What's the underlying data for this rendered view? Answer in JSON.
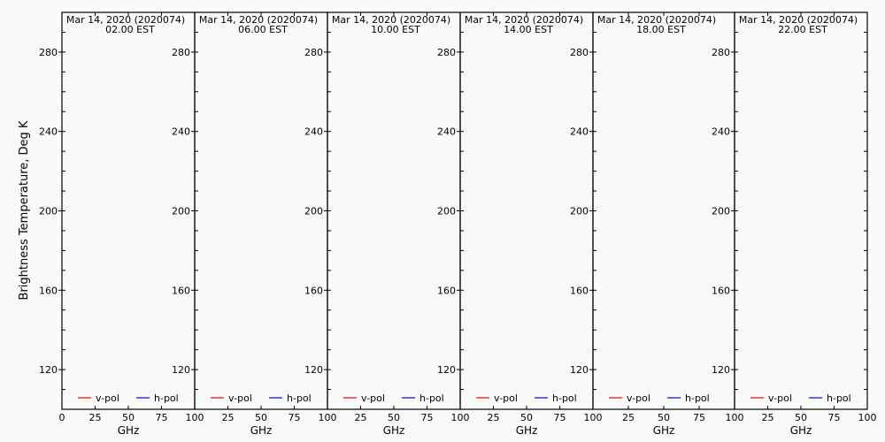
{
  "chart_data": [
    {
      "type": "line",
      "title": "Mar 14, 2020 (2020074)",
      "subtitle": "02.00 EST",
      "xlabel": "GHz",
      "ylabel": "Brightness Temperature, Deg K",
      "xlim": [
        0,
        100
      ],
      "ylim": [
        100,
        300
      ],
      "xticks": [
        "0",
        "25",
        "50",
        "75",
        "100"
      ],
      "yticks": [
        "120",
        "160",
        "200",
        "240",
        "280"
      ],
      "legend": [
        {
          "name": "v-pol",
          "color": "#ff0000"
        },
        {
          "name": "h-pol",
          "color": "#0000ff"
        }
      ],
      "legend_placement": "bottom",
      "series": [
        {
          "name": "v-pol",
          "values": []
        },
        {
          "name": "h-pol",
          "values": []
        }
      ],
      "grid": false
    },
    {
      "type": "line",
      "title": "Mar 14, 2020 (2020074)",
      "subtitle": "06.00 EST",
      "xlabel": "GHz",
      "xlim": [
        0,
        100
      ],
      "ylim": [
        100,
        300
      ],
      "xticks": [
        "25",
        "50",
        "75",
        "100"
      ],
      "yticks": [
        "120",
        "160",
        "200",
        "240",
        "280"
      ],
      "legend": [
        {
          "name": "v-pol",
          "color": "#ff0000"
        },
        {
          "name": "h-pol",
          "color": "#0000ff"
        }
      ],
      "legend_placement": "bottom",
      "series": [
        {
          "name": "v-pol",
          "values": []
        },
        {
          "name": "h-pol",
          "values": []
        }
      ],
      "grid": false
    },
    {
      "type": "line",
      "title": "Mar 14, 2020 (2020074)",
      "subtitle": "10.00 EST",
      "xlabel": "GHz",
      "xlim": [
        0,
        100
      ],
      "ylim": [
        100,
        300
      ],
      "xticks": [
        "25",
        "50",
        "75",
        "100"
      ],
      "yticks": [
        "120",
        "160",
        "200",
        "240",
        "280"
      ],
      "legend": [
        {
          "name": "v-pol",
          "color": "#ff0000"
        },
        {
          "name": "h-pol",
          "color": "#0000ff"
        }
      ],
      "legend_placement": "bottom",
      "series": [
        {
          "name": "v-pol",
          "values": []
        },
        {
          "name": "h-pol",
          "values": []
        }
      ],
      "grid": false
    },
    {
      "type": "line",
      "title": "Mar 14, 2020 (2020074)",
      "subtitle": "14.00 EST",
      "xlabel": "GHz",
      "xlim": [
        0,
        100
      ],
      "ylim": [
        100,
        300
      ],
      "xticks": [
        "25",
        "50",
        "75",
        "100"
      ],
      "yticks": [
        "120",
        "160",
        "200",
        "240",
        "280"
      ],
      "legend": [
        {
          "name": "v-pol",
          "color": "#ff0000"
        },
        {
          "name": "h-pol",
          "color": "#0000ff"
        }
      ],
      "legend_placement": "bottom",
      "series": [
        {
          "name": "v-pol",
          "values": []
        },
        {
          "name": "h-pol",
          "values": []
        }
      ],
      "grid": false
    },
    {
      "type": "line",
      "title": "Mar 14, 2020 (2020074)",
      "subtitle": "18.00 EST",
      "xlabel": "GHz",
      "xlim": [
        0,
        100
      ],
      "ylim": [
        100,
        300
      ],
      "xticks": [
        "25",
        "50",
        "75",
        "100"
      ],
      "yticks": [
        "120",
        "160",
        "200",
        "240",
        "280"
      ],
      "legend": [
        {
          "name": "v-pol",
          "color": "#ff0000"
        },
        {
          "name": "h-pol",
          "color": "#0000ff"
        }
      ],
      "legend_placement": "bottom",
      "series": [
        {
          "name": "v-pol",
          "values": []
        },
        {
          "name": "h-pol",
          "values": []
        }
      ],
      "grid": false
    },
    {
      "type": "line",
      "title": "Mar 14, 2020 (2020074)",
      "subtitle": "22.00 EST",
      "xlabel": "GHz",
      "xlim": [
        0,
        100
      ],
      "ylim": [
        100,
        300
      ],
      "xticks": [
        "25",
        "50",
        "75",
        "100"
      ],
      "yticks": [
        "120",
        "160",
        "200",
        "240",
        "280"
      ],
      "legend": [
        {
          "name": "v-pol",
          "color": "#ff0000"
        },
        {
          "name": "h-pol",
          "color": "#0000ff"
        }
      ],
      "legend_placement": "bottom",
      "series": [
        {
          "name": "v-pol",
          "values": []
        },
        {
          "name": "h-pol",
          "values": []
        }
      ],
      "grid": false
    }
  ]
}
